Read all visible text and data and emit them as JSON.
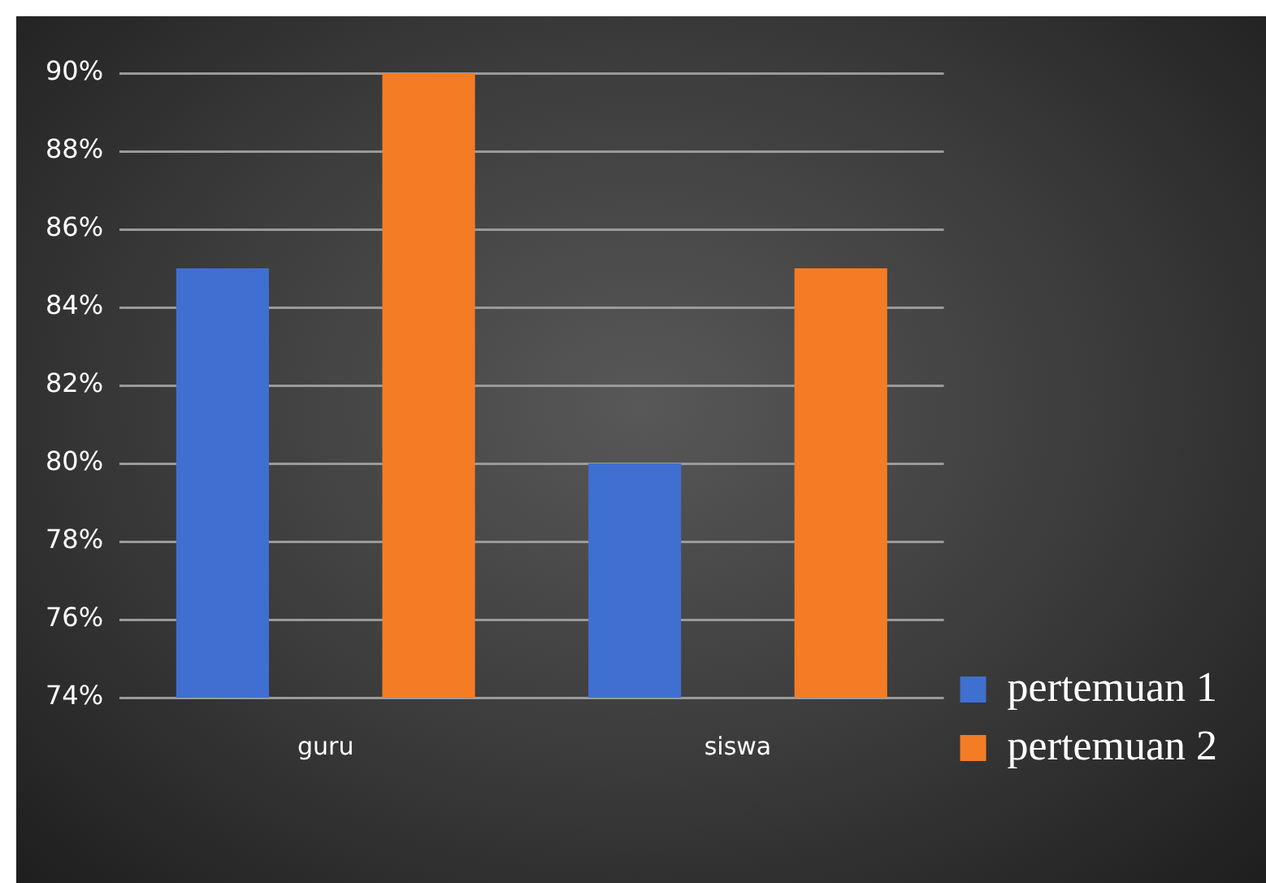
{
  "chart_data": {
    "type": "bar",
    "categories": [
      "guru",
      "siswa"
    ],
    "series": [
      {
        "name": "pertemuan 1",
        "color": "#3f6fd1",
        "values": [
          85,
          80
        ]
      },
      {
        "name": "pertemuan 2",
        "color": "#f47c25",
        "values": [
          90,
          85
        ]
      }
    ],
    "ylim": [
      74,
      90
    ],
    "yticks": [
      {
        "value": 74,
        "label": "74%"
      },
      {
        "value": 76,
        "label": "76%"
      },
      {
        "value": 78,
        "label": "78%"
      },
      {
        "value": 80,
        "label": "80%"
      },
      {
        "value": 82,
        "label": "82%"
      },
      {
        "value": 84,
        "label": "84%"
      },
      {
        "value": 86,
        "label": "86%"
      },
      {
        "value": 88,
        "label": "88%"
      },
      {
        "value": 90,
        "label": "90%"
      }
    ],
    "grid": "y",
    "legend": "bottom right"
  }
}
